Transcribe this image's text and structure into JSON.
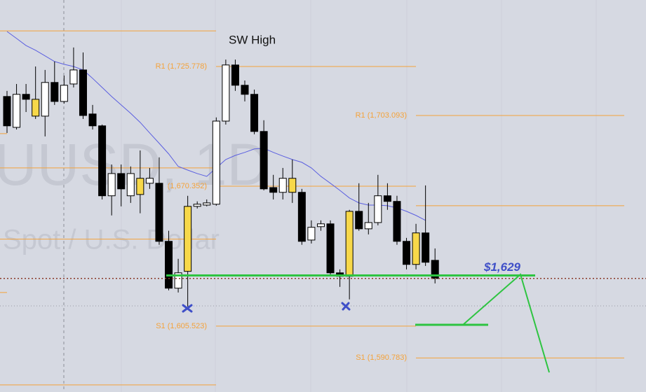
{
  "chart_data": {
    "type": "candlestick",
    "ylim": [
      1575,
      1756.6
    ],
    "watermark": [
      "UUSD, 1D",
      "Spot / U.S. Dollar"
    ],
    "categories": [
      null,
      null,
      null,
      null,
      null,
      null,
      null,
      null,
      null,
      null,
      null,
      null,
      null,
      null,
      null,
      null,
      null,
      null,
      null,
      null,
      null,
      null,
      null,
      null,
      null,
      null,
      null,
      null,
      null,
      null,
      null,
      null,
      null,
      null,
      null,
      null,
      null,
      null,
      null,
      null,
      null,
      null,
      null,
      null,
      null,
      null
    ],
    "open": [
      1711.9,
      1697.6,
      1712.9,
      1702.8,
      1702.8,
      1718.4,
      1709.6,
      1717.7,
      1724.2,
      1703.8,
      1698.3,
      1665.9,
      1676.2,
      1665.9,
      1666.5,
      1671.7,
      1671.7,
      1644.8,
      1623.1,
      1630.9,
      1661.0,
      1661.6,
      1662.0,
      1700.5,
      1726.5,
      1717.1,
      1712.9,
      1695.7,
      1669.7,
      1667.5,
      1667.5,
      1667.5,
      1645.4,
      1651.6,
      1652.9,
      1630.2,
      1628.6,
      1658.7,
      1650.6,
      1653.5,
      1665.9,
      1663.3,
      1644.8,
      1634.1,
      1648.7,
      1636.0
    ],
    "high": [
      1714.5,
      1717.7,
      1717.7,
      1725.8,
      1724.2,
      1728.1,
      1721.6,
      1734.6,
      1732.3,
      1708.0,
      1698.9,
      1680.4,
      1680.4,
      1679.5,
      1686.9,
      1678.8,
      1683.7,
      1649.7,
      1636.7,
      1665.9,
      1663.3,
      1664.2,
      1702.2,
      1729.0,
      1729.0,
      1719.3,
      1715.1,
      1700.9,
      1675.6,
      1678.8,
      1682.7,
      1669.1,
      1654.5,
      1654.5,
      1654.5,
      1631.8,
      1659.4,
      1671.7,
      1662.6,
      1675.6,
      1671.7,
      1665.9,
      1646.4,
      1652.9,
      1670.7,
      1641.5
    ],
    "low": [
      1695.0,
      1696.6,
      1704.7,
      1701.5,
      1693.4,
      1708.0,
      1708.6,
      1716.1,
      1701.5,
      1696.6,
      1664.2,
      1656.8,
      1661.0,
      1662.6,
      1657.8,
      1669.1,
      1643.2,
      1622.1,
      1621.1,
      1614.6,
      1660.0,
      1661.0,
      1661.3,
      1698.9,
      1714.5,
      1709.6,
      1694.4,
      1668.4,
      1664.2,
      1664.2,
      1662.6,
      1643.2,
      1643.8,
      1649.7,
      1628.6,
      1623.7,
      1617.9,
      1649.7,
      1648.0,
      1652.2,
      1659.4,
      1643.2,
      1631.8,
      1631.8,
      1633.4,
      1625.3
    ],
    "close": [
      1698.3,
      1712.9,
      1710.6,
      1710.6,
      1718.4,
      1709.6,
      1717.1,
      1724.2,
      1703.1,
      1698.3,
      1665.9,
      1676.2,
      1669.1,
      1676.2,
      1674.0,
      1674.0,
      1644.8,
      1623.1,
      1630.2,
      1661.0,
      1662.0,
      1662.6,
      1700.5,
      1726.5,
      1717.1,
      1712.9,
      1695.7,
      1669.1,
      1667.5,
      1674.0,
      1674.0,
      1644.8,
      1651.3,
      1652.9,
      1630.2,
      1628.6,
      1658.7,
      1650.6,
      1653.5,
      1665.9,
      1663.3,
      1644.8,
      1634.1,
      1648.7,
      1635.1,
      1627.6
    ],
    "up_color": "#ffffff",
    "down_color": "#000000",
    "highlight_color": "#f7d84a",
    "highlighted": [
      3,
      14,
      19,
      30,
      36,
      43
    ],
    "series": [
      {
        "color": "#5b5fe0",
        "values": [
          1742.0,
          1738.8,
          1735.5,
          1733.3,
          1730.7,
          1728.1,
          1726.8,
          1725.8,
          1724.2,
          1720.3,
          1716.1,
          1711.9,
          1708.0,
          1704.1,
          1699.9,
          1695.0,
          1690.2,
          1685.3,
          1679.5,
          1677.8,
          1676.2,
          1674.9,
          1678.8,
          1682.7,
          1684.6,
          1686.0,
          1687.6,
          1687.9,
          1686.0,
          1684.3,
          1682.7,
          1681.4,
          1678.8,
          1674.9,
          1671.7,
          1668.4,
          1664.9,
          1662.6,
          1661.6,
          1661.6,
          1661.3,
          1660.3,
          1658.7,
          1656.8,
          1654.5,
          null
        ]
      }
    ],
    "level_color": "#f4a23a",
    "levels": [
      {
        "value": 1742.3
      },
      {
        "value": 1725.778,
        "label": "R1 (1,725.778)"
      },
      {
        "value": 1703.093,
        "label": "R1 (1,703.093)"
      },
      {
        "value": 1694.7
      },
      {
        "value": 1678.8
      },
      {
        "value": 1670.352,
        "label": "(1,670.352)"
      },
      {
        "value": 1661.3
      },
      {
        "value": 1645.8
      },
      {
        "value": 1621.1
      },
      {
        "value": 1605.523,
        "label": "S1 (1,605.523)"
      },
      {
        "value": 1590.783,
        "label": "S1 (1,590.783)"
      },
      {
        "value": 1578.3
      }
    ],
    "annotation": "SW High",
    "target": {
      "value": 1629,
      "label": "$1,629",
      "color": "#2ec441",
      "label_color": "#3f4fc8"
    },
    "last_price_color": "#8a3a2a"
  }
}
